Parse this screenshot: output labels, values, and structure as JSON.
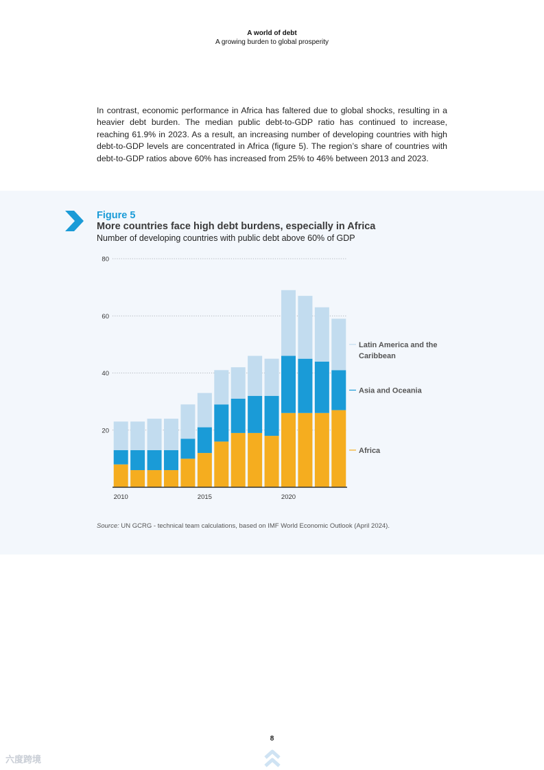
{
  "header": {
    "title": "A world of debt",
    "subtitle": "A growing burden to global prosperity"
  },
  "body": {
    "paragraph": "In contrast, economic performance in Africa has faltered due to global shocks, resulting in a heavier debt burden. The median public debt-to-GDP ratio has continued to increase, reaching 61.9% in 2023. As a result, an increasing number of developing countries with high debt-to-GDP levels are concentrated in Africa (figure 5). The region’s share of countries with debt-to-GDP ratios above 60% has increased from 25% to 46% between 2013 and 2023."
  },
  "figure": {
    "number": "Figure 5",
    "title": "More countries face high debt burdens, especially in Africa",
    "subtitle": "Number of developing countries with public debt above 60% of GDP",
    "source_label": "Source:",
    "source_text": " UN GCRG - technical team calculations, based on IMF World Economic Outlook (April 2024)."
  },
  "chart_data": {
    "type": "bar",
    "stacked": true,
    "title": "More countries face high debt burdens, especially in Africa",
    "subtitle": "Number of developing countries with public debt above 60% of GDP",
    "x": [
      2010,
      2011,
      2012,
      2013,
      2014,
      2015,
      2016,
      2017,
      2018,
      2019,
      2020,
      2021,
      2022,
      2023
    ],
    "x_tick_labels": [
      "2010",
      "2015",
      "2020"
    ],
    "x_tick_years": [
      2010,
      2015,
      2020
    ],
    "y_ticks": [
      20,
      40,
      60,
      80
    ],
    "ylim": [
      0,
      80
    ],
    "grid": "dotted horizontal",
    "series": [
      {
        "name": "Africa",
        "color": "#f5ad1f",
        "values": [
          8,
          6,
          6,
          6,
          10,
          12,
          16,
          19,
          19,
          18,
          26,
          26,
          26,
          27
        ]
      },
      {
        "name": "Asia and Oceania",
        "color": "#1a9bd7",
        "values": [
          5,
          7,
          7,
          7,
          7,
          9,
          13,
          12,
          13,
          14,
          20,
          19,
          18,
          14
        ]
      },
      {
        "name": "Latin America and the Caribbean",
        "color": "#c2dcef",
        "values": [
          10,
          10,
          11,
          11,
          12,
          12,
          12,
          11,
          14,
          13,
          23,
          22,
          19,
          18
        ]
      }
    ],
    "legend": [
      {
        "lines": [
          "Latin America and the",
          "Caribbean"
        ],
        "color": "#c2dcef",
        "anchor_value": 50
      },
      {
        "lines": [
          "Asia and Oceania"
        ],
        "color": "#1a9bd7",
        "anchor_value": 34
      },
      {
        "lines": [
          "Africa"
        ],
        "color": "#f5ad1f",
        "anchor_value": 13
      }
    ]
  },
  "footer": {
    "page_number": "8"
  },
  "watermark": {
    "text": "六度跨境"
  },
  "colors": {
    "accent": "#1a9bd7",
    "panel_bg": "#f3f7fc",
    "chevron": "#1a9bd7"
  }
}
